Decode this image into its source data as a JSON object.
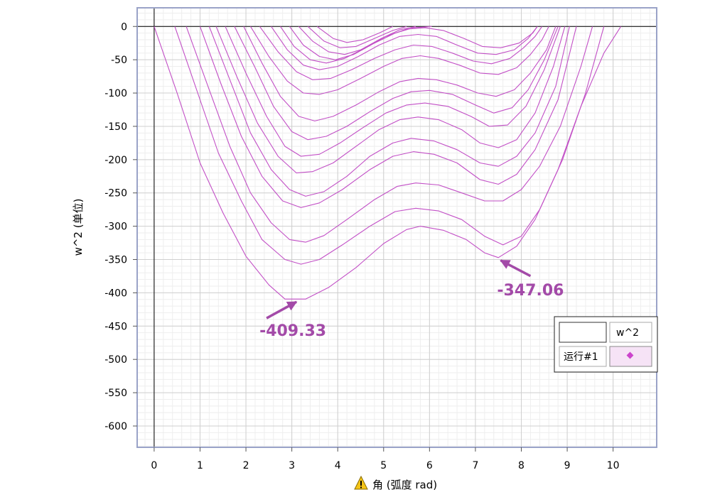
{
  "chart_data": {
    "type": "line",
    "xlabel": "角 (弧度 rad)",
    "ylabel": "w^2 (单位)",
    "xlim": [
      -0.37,
      10.95
    ],
    "ylim": [
      -632,
      28
    ],
    "x_ticks": [
      0,
      1,
      2,
      3,
      4,
      5,
      6,
      7,
      8,
      9,
      10
    ],
    "y_ticks": [
      0,
      -50,
      -100,
      -150,
      -200,
      -250,
      -300,
      -350,
      -400,
      -450,
      -500,
      -550,
      -600
    ],
    "grid": true,
    "legend": {
      "placement": "lower-right",
      "header": "w^2",
      "run_label": "运行#1",
      "marker_color": "#cc44cc"
    },
    "line_color": "#c24fc6",
    "series": [
      {
        "values": [
          [
            0,
            0
          ],
          [
            0.5,
            -100
          ],
          [
            1,
            -205
          ],
          [
            1.5,
            -280
          ],
          [
            2,
            -345
          ],
          [
            2.5,
            -388
          ],
          [
            2.85,
            -409.33
          ],
          [
            3.3,
            -409.33
          ],
          [
            3.8,
            -392
          ],
          [
            4.4,
            -362
          ],
          [
            5,
            -326
          ],
          [
            5.5,
            -305
          ],
          [
            5.8,
            -300
          ],
          [
            6.3,
            -306
          ],
          [
            6.8,
            -320
          ],
          [
            7.2,
            -340
          ],
          [
            7.5,
            -347.06
          ],
          [
            7.9,
            -330
          ],
          [
            8.3,
            -290
          ],
          [
            8.8,
            -215
          ],
          [
            9.3,
            -120
          ],
          [
            9.8,
            -40
          ],
          [
            10.17,
            0
          ]
        ]
      },
      {
        "values": [
          [
            0.45,
            0
          ],
          [
            0.95,
            -100
          ],
          [
            1.4,
            -190
          ],
          [
            1.9,
            -262
          ],
          [
            2.35,
            -320
          ],
          [
            2.85,
            -350
          ],
          [
            3.2,
            -357
          ],
          [
            3.6,
            -350
          ],
          [
            4.1,
            -328
          ],
          [
            4.7,
            -300
          ],
          [
            5.25,
            -278
          ],
          [
            5.7,
            -273
          ],
          [
            6.2,
            -277
          ],
          [
            6.7,
            -290
          ],
          [
            7.2,
            -315
          ],
          [
            7.6,
            -328
          ],
          [
            8,
            -315
          ],
          [
            8.4,
            -275
          ],
          [
            8.9,
            -200
          ],
          [
            9.4,
            -100
          ],
          [
            9.8,
            0
          ]
        ]
      },
      {
        "values": [
          [
            0.7,
            0
          ],
          [
            1.2,
            -95
          ],
          [
            1.65,
            -180
          ],
          [
            2.1,
            -250
          ],
          [
            2.55,
            -295
          ],
          [
            2.95,
            -320
          ],
          [
            3.3,
            -324
          ],
          [
            3.7,
            -314
          ],
          [
            4.2,
            -290
          ],
          [
            4.8,
            -260
          ],
          [
            5.3,
            -240
          ],
          [
            5.7,
            -235
          ],
          [
            6.2,
            -238
          ],
          [
            6.7,
            -250
          ],
          [
            7.2,
            -262
          ],
          [
            7.6,
            -262
          ],
          [
            8,
            -245
          ],
          [
            8.4,
            -210
          ],
          [
            8.85,
            -150
          ],
          [
            9.3,
            -60
          ],
          [
            9.55,
            0
          ]
        ]
      },
      {
        "values": [
          [
            1,
            0
          ],
          [
            1.45,
            -85
          ],
          [
            1.9,
            -165
          ],
          [
            2.35,
            -225
          ],
          [
            2.8,
            -262
          ],
          [
            3.2,
            -272
          ],
          [
            3.6,
            -265
          ],
          [
            4.1,
            -245
          ],
          [
            4.7,
            -215
          ],
          [
            5.2,
            -195
          ],
          [
            5.65,
            -188
          ],
          [
            6.1,
            -192
          ],
          [
            6.6,
            -205
          ],
          [
            7.1,
            -230
          ],
          [
            7.5,
            -237
          ],
          [
            7.9,
            -222
          ],
          [
            8.3,
            -185
          ],
          [
            8.8,
            -110
          ],
          [
            9.2,
            0
          ]
        ]
      },
      {
        "values": [
          [
            1.2,
            0
          ],
          [
            1.65,
            -80
          ],
          [
            2.1,
            -160
          ],
          [
            2.55,
            -215
          ],
          [
            2.95,
            -245
          ],
          [
            3.3,
            -255
          ],
          [
            3.7,
            -248
          ],
          [
            4.2,
            -225
          ],
          [
            4.7,
            -195
          ],
          [
            5.2,
            -175
          ],
          [
            5.6,
            -168
          ],
          [
            6.1,
            -172
          ],
          [
            6.6,
            -185
          ],
          [
            7.1,
            -205
          ],
          [
            7.5,
            -210
          ],
          [
            7.9,
            -195
          ],
          [
            8.3,
            -160
          ],
          [
            8.75,
            -90
          ],
          [
            9.05,
            0
          ]
        ]
      },
      {
        "values": [
          [
            1.35,
            0
          ],
          [
            1.8,
            -75
          ],
          [
            2.25,
            -145
          ],
          [
            2.7,
            -195
          ],
          [
            3.1,
            -220
          ],
          [
            3.45,
            -218
          ],
          [
            3.9,
            -205
          ],
          [
            4.4,
            -180
          ],
          [
            4.9,
            -155
          ],
          [
            5.35,
            -140
          ],
          [
            5.75,
            -136
          ],
          [
            6.2,
            -140
          ],
          [
            6.7,
            -155
          ],
          [
            7.1,
            -175
          ],
          [
            7.5,
            -182
          ],
          [
            7.9,
            -170
          ],
          [
            8.3,
            -130
          ],
          [
            8.7,
            -60
          ],
          [
            8.95,
            0
          ]
        ]
      },
      {
        "values": [
          [
            1.55,
            0
          ],
          [
            2,
            -70
          ],
          [
            2.45,
            -135
          ],
          [
            2.85,
            -180
          ],
          [
            3.2,
            -195
          ],
          [
            3.6,
            -192
          ],
          [
            4.05,
            -175
          ],
          [
            4.55,
            -152
          ],
          [
            5.05,
            -130
          ],
          [
            5.5,
            -118
          ],
          [
            5.9,
            -115
          ],
          [
            6.4,
            -120
          ],
          [
            6.9,
            -135
          ],
          [
            7.3,
            -150
          ],
          [
            7.7,
            -148
          ],
          [
            8.1,
            -120
          ],
          [
            8.5,
            -65
          ],
          [
            8.85,
            0
          ]
        ]
      },
      {
        "values": [
          [
            1.75,
            0
          ],
          [
            2.2,
            -62
          ],
          [
            2.6,
            -120
          ],
          [
            3,
            -158
          ],
          [
            3.35,
            -170
          ],
          [
            3.75,
            -165
          ],
          [
            4.2,
            -150
          ],
          [
            4.7,
            -128
          ],
          [
            5.2,
            -108
          ],
          [
            5.6,
            -98
          ],
          [
            6,
            -96
          ],
          [
            6.5,
            -102
          ],
          [
            7,
            -118
          ],
          [
            7.4,
            -130
          ],
          [
            7.8,
            -122
          ],
          [
            8.15,
            -95
          ],
          [
            8.5,
            -50
          ],
          [
            8.8,
            0
          ]
        ]
      },
      {
        "values": [
          [
            1.95,
            0
          ],
          [
            2.35,
            -55
          ],
          [
            2.75,
            -105
          ],
          [
            3.15,
            -135
          ],
          [
            3.5,
            -142
          ],
          [
            3.9,
            -135
          ],
          [
            4.4,
            -118
          ],
          [
            4.9,
            -98
          ],
          [
            5.35,
            -83
          ],
          [
            5.75,
            -78
          ],
          [
            6.15,
            -80
          ],
          [
            6.6,
            -88
          ],
          [
            7.05,
            -100
          ],
          [
            7.45,
            -105
          ],
          [
            7.85,
            -95
          ],
          [
            8.2,
            -70
          ],
          [
            8.55,
            -35
          ],
          [
            8.75,
            0
          ]
        ]
      },
      {
        "values": [
          [
            2.1,
            0
          ],
          [
            2.5,
            -45
          ],
          [
            2.9,
            -82
          ],
          [
            3.25,
            -100
          ],
          [
            3.6,
            -102
          ],
          [
            4,
            -95
          ],
          [
            4.5,
            -78
          ],
          [
            5,
            -60
          ],
          [
            5.4,
            -48
          ],
          [
            5.8,
            -44
          ],
          [
            6.2,
            -48
          ],
          [
            6.65,
            -58
          ],
          [
            7.1,
            -70
          ],
          [
            7.5,
            -72
          ],
          [
            7.9,
            -62
          ],
          [
            8.2,
            -42
          ],
          [
            8.45,
            -20
          ],
          [
            8.6,
            0
          ]
        ]
      },
      {
        "values": [
          [
            2.3,
            0
          ],
          [
            2.7,
            -38
          ],
          [
            3.1,
            -68
          ],
          [
            3.45,
            -80
          ],
          [
            3.85,
            -78
          ],
          [
            4.3,
            -65
          ],
          [
            4.8,
            -48
          ],
          [
            5.25,
            -35
          ],
          [
            5.65,
            -28
          ],
          [
            6.05,
            -30
          ],
          [
            6.5,
            -40
          ],
          [
            6.95,
            -52
          ],
          [
            7.35,
            -56
          ],
          [
            7.75,
            -48
          ],
          [
            8.05,
            -32
          ],
          [
            8.3,
            -15
          ],
          [
            8.45,
            0
          ]
        ]
      },
      {
        "values": [
          [
            2.55,
            0
          ],
          [
            2.9,
            -35
          ],
          [
            3.25,
            -58
          ],
          [
            3.6,
            -65
          ],
          [
            4,
            -60
          ],
          [
            4.45,
            -45
          ],
          [
            4.9,
            -28
          ],
          [
            5.35,
            -15
          ],
          [
            5.75,
            -12
          ],
          [
            6.15,
            -15
          ],
          [
            6.6,
            -28
          ],
          [
            7.05,
            -40
          ],
          [
            7.45,
            -42
          ],
          [
            7.85,
            -35
          ],
          [
            8.15,
            -18
          ],
          [
            8.35,
            0
          ]
        ]
      },
      {
        "values": [
          [
            2.75,
            0
          ],
          [
            3.05,
            -30
          ],
          [
            3.4,
            -50
          ],
          [
            3.75,
            -55
          ],
          [
            4.15,
            -48
          ],
          [
            4.6,
            -32
          ],
          [
            5.05,
            -15
          ],
          [
            5.5,
            -4
          ],
          [
            5.9,
            -2
          ],
          [
            6.3,
            -6
          ],
          [
            6.75,
            -18
          ],
          [
            7.15,
            -30
          ],
          [
            7.55,
            -32
          ],
          [
            7.95,
            -25
          ],
          [
            8.25,
            -10
          ],
          [
            8.35,
            0
          ]
        ]
      },
      {
        "values": [
          [
            2.95,
            0
          ],
          [
            3.25,
            -28
          ],
          [
            3.6,
            -45
          ],
          [
            3.95,
            -50
          ],
          [
            4.35,
            -42
          ],
          [
            4.8,
            -25
          ],
          [
            5.25,
            -10
          ],
          [
            5.65,
            -2
          ],
          [
            6.05,
            0
          ]
        ]
      },
      {
        "values": [
          [
            3.15,
            0
          ],
          [
            3.45,
            -22
          ],
          [
            3.8,
            -38
          ],
          [
            4.15,
            -42
          ],
          [
            4.5,
            -35
          ],
          [
            4.95,
            -18
          ],
          [
            5.35,
            -5
          ],
          [
            5.7,
            0
          ]
        ]
      },
      {
        "values": [
          [
            3.35,
            0
          ],
          [
            3.7,
            -22
          ],
          [
            4.05,
            -32
          ],
          [
            4.4,
            -30
          ],
          [
            4.8,
            -18
          ],
          [
            5.2,
            -6
          ],
          [
            5.5,
            0
          ]
        ]
      },
      {
        "values": [
          [
            3.55,
            0
          ],
          [
            3.9,
            -18
          ],
          [
            4.2,
            -24
          ],
          [
            4.55,
            -20
          ],
          [
            4.9,
            -10
          ],
          [
            5.2,
            0
          ]
        ]
      }
    ],
    "annotations": [
      {
        "text": "-409.33",
        "point": [
          3.1,
          -409.33
        ]
      },
      {
        "text": "-347.06",
        "point": [
          7.55,
          -347.06
        ]
      }
    ]
  }
}
